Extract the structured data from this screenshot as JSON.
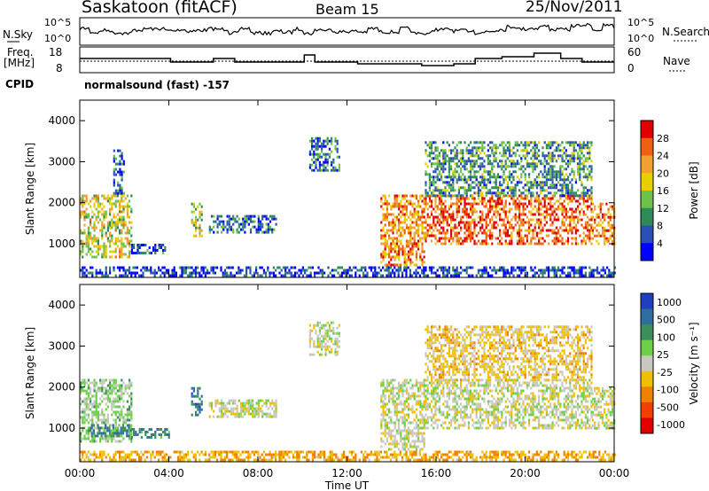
{
  "header": {
    "station": "Saskatoon (fitACF)",
    "beam": "Beam 15",
    "date": "25/Nov/2011"
  },
  "aux": {
    "nsky_label": "N.Sky",
    "nsky_ticks": [
      "10^5",
      "10^0"
    ],
    "nsearch_label": "N.Search",
    "nsearch_ticks": [
      "10^5",
      "10^0"
    ],
    "freq_label": "Freq.",
    "freq_unit": "[MHz]",
    "freq_ticks": [
      "18",
      "8"
    ],
    "nave_label": "Nave",
    "nave_ticks": [
      "60",
      "0"
    ],
    "cpid_label": "CPID",
    "cpid_value": "normalsound (fast) -157"
  },
  "colors": {
    "power_scale": [
      "#0000ff",
      "#2a50b8",
      "#2f8a5a",
      "#6cc24a",
      "#e8d000",
      "#f0a030",
      "#f06010",
      "#e00000"
    ],
    "velocity_scale": [
      "#1e3fbf",
      "#2f6f9f",
      "#3a8f5a",
      "#6cd048",
      "#c8c8c0",
      "#f0c000",
      "#f08000",
      "#f04000",
      "#e00000"
    ]
  },
  "chart_data": [
    {
      "type": "heatmap",
      "name": "power",
      "ylabel": "Slant Range [km]",
      "yticks": [
        "1000",
        "2000",
        "3000",
        "4000"
      ],
      "ylim": [
        180,
        4500
      ],
      "xticks": [
        "00:00",
        "04:00",
        "08:00",
        "12:00",
        "16:00",
        "20:00",
        "00:00"
      ],
      "xlim_hours": [
        0,
        24
      ],
      "colorbar": {
        "label": "Power [dB]",
        "ticks": [
          "4",
          "8",
          "12",
          "16",
          "20",
          "24",
          "28"
        ],
        "range": [
          0,
          32
        ]
      },
      "regions": [
        {
          "t0": 0.0,
          "t1": 2.3,
          "r0": 700,
          "r1": 2200,
          "level": 0.55
        },
        {
          "t0": 1.5,
          "t1": 2.0,
          "r0": 2200,
          "r1": 3300,
          "level": 0.2
        },
        {
          "t0": 2.3,
          "t1": 3.8,
          "r0": 800,
          "r1": 1000,
          "level": 0.15
        },
        {
          "t0": 5.0,
          "t1": 5.5,
          "r0": 1200,
          "r1": 2000,
          "level": 0.5
        },
        {
          "t0": 5.8,
          "t1": 8.8,
          "r0": 1300,
          "r1": 1700,
          "level": 0.2
        },
        {
          "t0": 10.3,
          "t1": 11.7,
          "r0": 2800,
          "r1": 3600,
          "level": 0.2
        },
        {
          "t0": 13.5,
          "t1": 15.5,
          "r0": 500,
          "r1": 2200,
          "level": 0.75
        },
        {
          "t0": 15.5,
          "t1": 23.0,
          "r0": 1000,
          "r1": 2200,
          "level": 0.85
        },
        {
          "t0": 15.5,
          "t1": 23.0,
          "r0": 2200,
          "r1": 3500,
          "level": 0.3
        },
        {
          "t0": 23.0,
          "t1": 24.0,
          "r0": 1000,
          "r1": 2000,
          "level": 0.75
        },
        {
          "t0": 0.0,
          "t1": 24.0,
          "r0": 250,
          "r1": 450,
          "level": 0.1
        }
      ]
    },
    {
      "type": "heatmap",
      "name": "velocity",
      "ylabel": "Slant Range [km]",
      "yticks": [
        "1000",
        "2000",
        "3000",
        "4000"
      ],
      "ylim": [
        180,
        4500
      ],
      "xticks": [
        "00:00",
        "04:00",
        "08:00",
        "12:00",
        "16:00",
        "20:00",
        "00:00"
      ],
      "xlim_hours": [
        0,
        24
      ],
      "xlabel": "Time UT",
      "colorbar": {
        "label": "Velocity [m s⁻¹]",
        "ticks": [
          "1000",
          "500",
          "100",
          "25",
          "-25",
          "-100",
          "-500",
          "-1000"
        ],
        "range": [
          -1000,
          1000
        ]
      },
      "regions": [
        {
          "t0": 0.0,
          "t1": 2.3,
          "r0": 700,
          "r1": 2200,
          "v": 0.2
        },
        {
          "t0": 0.5,
          "t1": 2.3,
          "r0": 800,
          "r1": 1100,
          "v": 0.6
        },
        {
          "t0": 2.3,
          "t1": 4.0,
          "r0": 800,
          "r1": 1000,
          "v": 0.6
        },
        {
          "t0": 5.0,
          "t1": 5.5,
          "r0": 1300,
          "r1": 2000,
          "v": 0.7
        },
        {
          "t0": 5.8,
          "t1": 8.8,
          "r0": 1300,
          "r1": 1700,
          "v": 0.0
        },
        {
          "t0": 10.3,
          "t1": 11.7,
          "r0": 2800,
          "r1": 3600,
          "v": 0.0
        },
        {
          "t0": 13.5,
          "t1": 15.5,
          "r0": 500,
          "r1": 2200,
          "v": 0.0
        },
        {
          "t0": 15.5,
          "t1": 23.0,
          "r0": 1000,
          "r1": 2200,
          "v": 0.0
        },
        {
          "t0": 15.5,
          "t1": 23.0,
          "r0": 2200,
          "r1": 3500,
          "v": -0.2
        },
        {
          "t0": 23.0,
          "t1": 24.0,
          "r0": 1000,
          "r1": 2000,
          "v": 0.0
        },
        {
          "t0": 0.0,
          "t1": 24.0,
          "r0": 250,
          "r1": 450,
          "v": -0.35
        }
      ]
    }
  ]
}
